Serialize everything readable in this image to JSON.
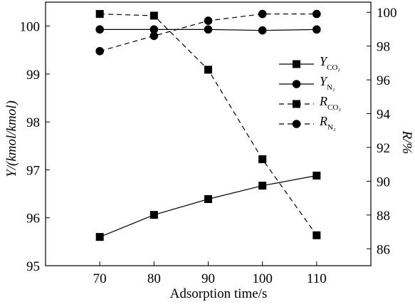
{
  "chart_data": {
    "type": "line",
    "x": [
      70,
      80,
      90,
      100,
      110
    ],
    "xlabel": "Adsorption time/s",
    "xlim": [
      60,
      120
    ],
    "xticks": [
      70,
      80,
      90,
      100,
      110
    ],
    "y_left": {
      "label": "Y/(kmol/kmol)",
      "lim": [
        95,
        100.5
      ],
      "ticks": [
        95,
        96,
        97,
        98,
        99,
        100
      ]
    },
    "y_right": {
      "label": "R/%",
      "lim": [
        85,
        100.6
      ],
      "ticks": [
        86,
        88,
        90,
        92,
        94,
        96,
        98,
        100
      ]
    },
    "series": [
      {
        "name": "Y_CO2",
        "label_main": "Y",
        "label_sub": "CO₂",
        "axis": "left",
        "marker": "square",
        "line": "solid",
        "values": [
          95.6,
          96.06,
          96.39,
          96.67,
          96.88
        ]
      },
      {
        "name": "Y_N2",
        "label_main": "Y",
        "label_sub": "N₂",
        "axis": "left",
        "marker": "circle",
        "line": "solid",
        "values": [
          99.93,
          99.93,
          99.93,
          99.91,
          99.93
        ]
      },
      {
        "name": "R_CO2",
        "label_main": "R",
        "label_sub": "CO₂",
        "axis": "right",
        "marker": "square",
        "line": "dashed",
        "values": [
          99.9,
          99.8,
          96.6,
          91.3,
          86.8
        ]
      },
      {
        "name": "R_N2",
        "label_main": "R",
        "label_sub": "N₂",
        "axis": "right",
        "marker": "circle",
        "line": "dashed",
        "values": [
          97.7,
          98.6,
          99.5,
          99.9,
          99.9
        ]
      }
    ],
    "legend_position": "right, upper-middle",
    "grid": false,
    "colors": {
      "line": "#000000",
      "marker": "#000000",
      "background": "#ffffff"
    }
  }
}
